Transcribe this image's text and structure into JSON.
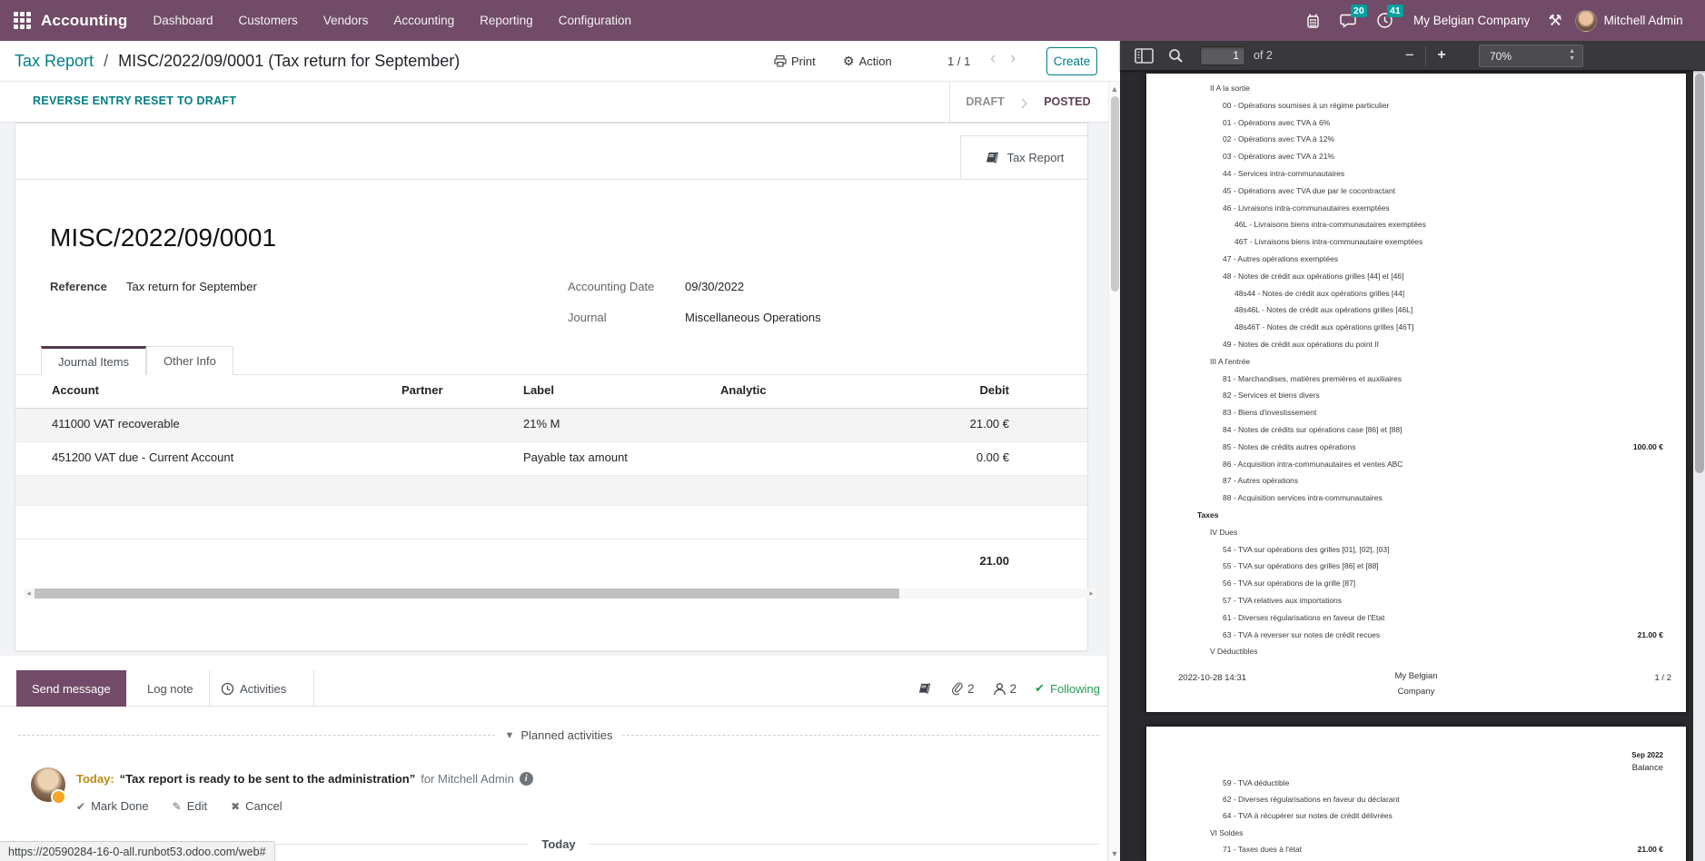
{
  "colors": {
    "brand": "#714B67",
    "link_teal": "#017E84",
    "badge_teal": "#00A09D",
    "status_purple": "#5E4155",
    "activity_orange": "#F5A623",
    "following_green": "#259C53"
  },
  "topnav": {
    "app": "Accounting",
    "menus": [
      "Dashboard",
      "Customers",
      "Vendors",
      "Accounting",
      "Reporting",
      "Configuration"
    ],
    "message_badge": "20",
    "activity_badge": "41",
    "company": "My Belgian Company",
    "user": "Mitchell Admin"
  },
  "breadcrumb": {
    "parent": "Tax Report",
    "separator": "/",
    "current": "MISC/2022/09/0001 (Tax return for September)",
    "print_label": "Print",
    "action_label": "Action",
    "pager": "1 / 1",
    "prev": "‹",
    "next": "›",
    "create_label": "Create"
  },
  "controls": {
    "reverse_entry": "REVERSE ENTRY",
    "reset_to_draft": "RESET TO DRAFT",
    "status_draft": "DRAFT",
    "status_posted": "POSTED"
  },
  "sheet": {
    "tax_report_button": "Tax Report",
    "title": "MISC/2022/09/0001",
    "reference_label": "Reference",
    "reference_value": "Tax return for September",
    "accounting_date_label": "Accounting Date",
    "accounting_date_value": "09/30/2022",
    "journal_label": "Journal",
    "journal_value": "Miscellaneous Operations",
    "tabs": [
      "Journal Items",
      "Other Info"
    ],
    "active_tab": "Journal Items"
  },
  "table": {
    "columns": [
      "Account",
      "Partner",
      "Label",
      "Analytic",
      "Debit"
    ],
    "rows": [
      {
        "account": "411000 VAT recoverable",
        "partner": "",
        "label": "21% M",
        "analytic": "",
        "debit": "21.00 €"
      },
      {
        "account": "451200 VAT due - Current Account",
        "partner": "",
        "label": "Payable tax amount",
        "analytic": "",
        "debit": "0.00 €"
      },
      {
        "account": "",
        "partner": "",
        "label": "",
        "analytic": "",
        "debit": ""
      },
      {
        "account": "",
        "partner": "",
        "label": "",
        "analytic": "",
        "debit": ""
      }
    ],
    "total_debit": "21.00"
  },
  "chatter": {
    "send_message": "Send message",
    "log_note": "Log note",
    "activities": "Activities",
    "attachment_count": "2",
    "follower_count": "2",
    "following": "Following",
    "planned_activities": "Planned activities",
    "activity": {
      "due": "Today:",
      "summary": "“Tax report is ready to be sent to the administration”",
      "assigned": "for Mitchell Admin",
      "mark_done": "Mark Done",
      "edit": "Edit",
      "cancel": "Cancel"
    },
    "date_separator": "Today"
  },
  "status_url": "https://20590284-16-0-all.runbot53.odoo.com/web#",
  "pdf": {
    "toolbar": {
      "page_value": "1",
      "page_of": "of 2",
      "zoom_out": "−",
      "zoom_in": "+",
      "zoom_value": "70%"
    },
    "page1_lines": [
      {
        "t": "II A la sortie",
        "lvl": 1
      },
      {
        "t": "00 - Opérations soumises à un régime particulier",
        "lvl": 2
      },
      {
        "t": "01 - Opérations avec TVA à 6%",
        "lvl": 2
      },
      {
        "t": "02 - Opérations avec TVA à 12%",
        "lvl": 2
      },
      {
        "t": "03 - Opérations avec TVA à 21%",
        "lvl": 2
      },
      {
        "t": "44 - Services intra-communautaires",
        "lvl": 2
      },
      {
        "t": "45 - Opérations avec TVA due par le cocontractant",
        "lvl": 2
      },
      {
        "t": "46 - Livraisons intra-communautaires exemptées",
        "lvl": 2
      },
      {
        "t": "46L - Livraisons biens intra-communautaires exemptées",
        "lvl": 3
      },
      {
        "t": "46T - Livraisons biens intra-communautaire exemptées",
        "lvl": 3
      },
      {
        "t": "47 - Autres opérations exemptées",
        "lvl": 2
      },
      {
        "t": "48 - Notes de crédit aux opérations grilles [44] et [46]",
        "lvl": 2
      },
      {
        "t": "48s44 - Notes de crédit aux opérations grilles [44]",
        "lvl": 3
      },
      {
        "t": "48s46L - Notes de crédit aux opérations grilles [46L]",
        "lvl": 3
      },
      {
        "t": "48s46T - Notes de crédit aux opérations grilles [46T]",
        "lvl": 3
      },
      {
        "t": "49 - Notes de crédit aux opérations du point II",
        "lvl": 2
      },
      {
        "t": "III A l'entrée",
        "lvl": 1
      },
      {
        "t": "81 - Marchandises, matières premières et auxiliaires",
        "lvl": 2
      },
      {
        "t": "82 - Services et biens divers",
        "lvl": 2
      },
      {
        "t": "83 - Biens d'investissement",
        "lvl": 2
      },
      {
        "t": "84 - Notes de crédits sur opérations case [86] et [88]",
        "lvl": 2
      },
      {
        "t": "85 - Notes de crédits autres opérations",
        "lvl": 2,
        "v": "100.00 €"
      },
      {
        "t": "86 - Acquisition intra-communautaires et ventes ABC",
        "lvl": 2
      },
      {
        "t": "87 - Autres opérations",
        "lvl": 2
      },
      {
        "t": "88 - Acquisition services intra-communautaires",
        "lvl": 2
      },
      {
        "t": "Taxes",
        "lvl": 0,
        "b": true
      },
      {
        "t": "IV Dues",
        "lvl": 1
      },
      {
        "t": "54 - TVA sur opérations des grilles [01], [02], [03]",
        "lvl": 2
      },
      {
        "t": "55 - TVA sur opérations des grilles [86] et [88]",
        "lvl": 2
      },
      {
        "t": "56 - TVA sur opérations de la grille [87]",
        "lvl": 2
      },
      {
        "t": "57 - TVA relatives aux importations",
        "lvl": 2
      },
      {
        "t": "61 - Diverses régularisations en faveur de l'Etat",
        "lvl": 2
      },
      {
        "t": "63 - TVA à reverser sur notes de crédit recues",
        "lvl": 2,
        "v": "21.00 €"
      },
      {
        "t": "V Déductibles",
        "lvl": 1
      }
    ],
    "page1_footer": {
      "left": "2022-10-28 14:31",
      "center1": "My Belgian",
      "center2": "Company",
      "right": "1  /  2"
    },
    "page2_header1": "Sep 2022",
    "page2_header2": "Balance",
    "page2_lines": [
      {
        "t": "59 - TVA déductible",
        "lvl": 2
      },
      {
        "t": "62 - Diverses régularisations en faveur du déclarant",
        "lvl": 2
      },
      {
        "t": "64 - TVA à récupérer sur notes de crédit délivrées",
        "lvl": 2
      },
      {
        "t": "VI Soldes",
        "lvl": 1
      },
      {
        "t": "71 - Taxes dues à l'état",
        "lvl": 2,
        "v": "21.00 €"
      }
    ]
  }
}
